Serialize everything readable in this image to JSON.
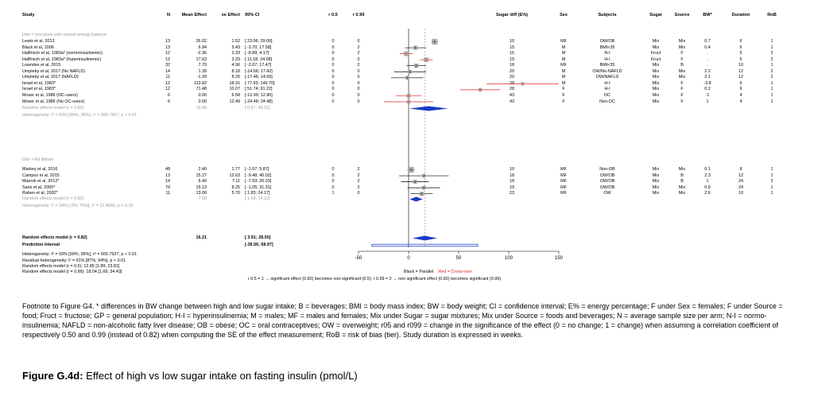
{
  "headers": {
    "study": "Study",
    "n": "N",
    "mean": "Mean Effect",
    "se": "se Effect",
    "ci": "95% CI",
    "r05": "r 0.5",
    "r099": "r 0.99",
    "sugar_diff": "Sugar diff (E%)",
    "sex": "Sex",
    "subjects": "Subjects",
    "sugar": "Sugar",
    "source": "Source",
    "bw": "BW*",
    "duration": "Duration",
    "rob": "RoB"
  },
  "groups": [
    {
      "label": "Diet = Isocaloric with neutral energy balance",
      "studies": [
        {
          "study": "Lewis et al, 2013",
          "n": "13",
          "mean": "26.02",
          "se": "1.52",
          "ci": "[ 23.06; 29.00]",
          "r05": "0",
          "r099": "0",
          "sugar_diff": "10",
          "sex": "MF",
          "subjects": "OW/OB",
          "sugar": "Mix",
          "source": "Mix",
          "bw": "0.7",
          "duration": "6",
          "rob": "1"
        },
        {
          "study": "Black et al, 2006",
          "n": "13",
          "mean": "6.94",
          "se": "5.43",
          "ci": "[ -3.70; 17.58]",
          "r05": "0",
          "r099": "2",
          "sugar_diff": "15",
          "sex": "M",
          "subjects": "BMI<35",
          "sugar": "Mix",
          "source": "Mix",
          "bw": "0.4",
          "duration": "6",
          "rob": "1"
        },
        {
          "study": "Hallfrisch et al, 1983a* (normoinsulinemic)",
          "n": "12",
          "mean": "-2.36",
          "se": "3.33",
          "ci": "[ -8.89; 4.17]",
          "r05": "0",
          "r099": "2",
          "sugar_diff": "15",
          "sex": "M",
          "subjects": "N-I",
          "sugar": "Fruct",
          "source": "F",
          "bw": ".",
          "duration": "5",
          "rob": "2"
        },
        {
          "study": "Hallfrisch et al, 1983a* (hyperinsulinemic)",
          "n": "12",
          "mean": "17.63",
          "se": "3.29",
          "ci": "[ 11.18; 24.08]",
          "r05": "0",
          "r099": "0",
          "sugar_diff": "15",
          "sex": "M",
          "subjects": "H-I",
          "sugar": "Fruct",
          "source": "F",
          "bw": ".",
          "duration": "5",
          "rob": "2"
        },
        {
          "study": "Lowndes et al, 2015",
          "n": "32",
          "mean": "7.70",
          "se": "4.96",
          "ci": "[ -2.07; 17.47]",
          "r05": "0",
          "r099": "2",
          "sugar_diff": "18",
          "sex": "MF",
          "subjects": "BMI<35",
          "sugar": "Mix",
          "source": "B",
          "bw": ".",
          "duration": "10",
          "rob": "1"
        },
        {
          "study": "Umpleby et al, 2017 (No NAFLD)",
          "n": "14",
          "mean": "1.39",
          "se": "8.18",
          "ci": "[-14.66; 17.42]",
          "r05": "0",
          "r099": "0",
          "sugar_diff": "20",
          "sex": "M",
          "subjects": "OW/No-NAFLD",
          "sugar": "Mix",
          "source": "Mix",
          "bw": "2.2",
          "duration": "12",
          "rob": "2"
        },
        {
          "study": "Umpleby et al, 2017 (NAFLD)",
          "n": "11",
          "mean": "-1.39",
          "se": "8.20",
          "ci": "[-17.46; 14.69]",
          "r05": "0",
          "r099": "0",
          "sugar_diff": "20",
          "sex": "M",
          "subjects": "OW/NAFLD",
          "sugar": "Mix",
          "source": "Mix",
          "bw": "2.1",
          "duration": "12",
          "rob": "2"
        },
        {
          "study": "Israel et al, 1983*",
          "n": "12",
          "mean": "113.82",
          "se": "18.31",
          "ci": "[ 77.93; 149.70]",
          "r05": "0",
          "r099": "0",
          "sugar_diff": "28",
          "sex": "M",
          "subjects": "H-I",
          "sugar": "Mix",
          "source": "F",
          "bw": "-3.8",
          "duration": "6",
          "rob": "1"
        },
        {
          "study": "Israel et al, 1983*",
          "n": "12",
          "mean": "71.48",
          "se": "10.07",
          "ci": "[ 51.74; 91.22]",
          "r05": "0",
          "r099": "0",
          "sugar_diff": "28",
          "sex": "F",
          "subjects": "H-I",
          "sugar": "Mix",
          "source": "F",
          "bw": "0.2",
          "duration": "6",
          "rob": "1"
        },
        {
          "study": "Moser et al, 1986 (OC-users)",
          "n": "6",
          "mean": "0.00",
          "se": "6.58",
          "ci": "[-12.90; 12.90]",
          "r05": "0",
          "r099": "0",
          "sugar_diff": "43",
          "sex": "F",
          "subjects": "OC",
          "sugar": "Mix",
          "source": "F",
          "bw": "-1",
          "duration": "4",
          "rob": "1"
        },
        {
          "study": "Moser et al, 1986 (No OC-users)",
          "n": "6",
          "mean": "0.00",
          "se": "12.49",
          "ci": "[-24.48; 24.48]",
          "r05": "0",
          "r099": "0",
          "sugar_diff": "43",
          "sex": "F",
          "subjects": "Non-OC",
          "sugar": "Mix",
          "source": "F",
          "bw": "1",
          "duration": "4",
          "rob": "1"
        }
      ],
      "summary": {
        "label": "Random effects model (r = 0.82)",
        "mean": "19.99",
        "ci": "[ 0.67; 39.31]"
      },
      "heterogeneity": "Heterogeneity: I² = 93% [90%; 96%], τ² = 998.7967, p < 0.01"
    },
    {
      "label": "Diet = Ad libitum",
      "studies": [
        {
          "study": "Markey et al, 2016",
          "n": "48",
          "mean": "2.40",
          "se": "1.77",
          "ci": "[ -1.07; 5.87]",
          "r05": "0",
          "r099": "2",
          "sugar_diff": "10",
          "sex": "MF",
          "subjects": "Non-OB",
          "sugar": "Mix",
          "source": "Mix",
          "bw": "0.1",
          "duration": "8",
          "rob": "1"
        },
        {
          "study": "Campos et al, 2015",
          "n": "13",
          "mean": "15.27",
          "se": "12.63",
          "ci": "[ -9.48; 40.02]",
          "r05": "0",
          "r099": "2",
          "sugar_diff": "18",
          "sex": "MF",
          "subjects": "OW/OB",
          "sugar": "Mix",
          "source": "B",
          "bw": "2.3",
          "duration": "12",
          "rob": "1"
        },
        {
          "study": "Maersk et al, 2012*",
          "n": "14",
          "mean": "6.40",
          "se": "7.11",
          "ci": "[ -7.53; 20.33]",
          "r05": "0",
          "r099": "2",
          "sugar_diff": "18",
          "sex": "MF",
          "subjects": "OW/OB",
          "sugar": "Mix",
          "source": "B",
          "bw": "1",
          "duration": "24",
          "rob": "2"
        },
        {
          "study": "Saris et al, 2000*",
          "n": "79",
          "mean": "15.13",
          "se": "8.25",
          "ci": "[ -1.05; 31.31]",
          "r05": "0",
          "r099": "2",
          "sugar_diff": "19",
          "sex": "MF",
          "subjects": "OW/OB",
          "sugar": "Mix",
          "source": "Mix",
          "bw": "0.9",
          "duration": "24",
          "rob": "1"
        },
        {
          "study": "Raben et al, 2002*",
          "n": "11",
          "mean": "13.00",
          "se": "5.70",
          "ci": "[ 1.83; 24.17]",
          "r05": "1",
          "r099": "0",
          "sugar_diff": "23",
          "sex": "MF",
          "subjects": "OW",
          "sugar": "Mix",
          "source": "Mix",
          "bw": "2.6",
          "duration": "10",
          "rob": "1"
        }
      ],
      "summary": {
        "label": "Random effects model (r = 0.82)",
        "mean": "7.58",
        "ci": "[ 1.04; 14.12]"
      },
      "heterogeneity": "Heterogeneity: I² = 34% [ 0%; 75%], τ² = 21.4566, p = 0.20"
    }
  ],
  "overall": {
    "label": "Random effects model (r = 0.82)",
    "mean": "16.21",
    "ci": "[ 3.91; 28.50]",
    "pi_label": "Prediction interval",
    "pi": "[-36.56; 68.97]"
  },
  "footer_stats": [
    "Heterogeneity: I² = 93% [90%; 95%], τ² = 565.7927, p < 0.01",
    "Residual heterogeneity: I² = 91% [87%; 94%], p < 0.01",
    "Random effects model (r = 0.5): 12.85 [1.89; 23.81]",
    "Random effects model (r = 0.99): 18.04 [1.66; 34.43]"
  ],
  "legend": {
    "black": "Black = Parallel",
    "red": "Red = Cross-over"
  },
  "legend_note": "r 0.5 = 1 → significant effect (0.82) becomes non-significant (0.5); r 0.99 = 2 → non significant effect (0.82) becomes significant (0.99)",
  "colors": {
    "parallel": "#000000",
    "crossover": "#e02020",
    "diamond": "#1a3cc8",
    "pi": "#1a3cc8",
    "box": "#a0a0a0",
    "group": "#9a9a9a"
  },
  "chart_data": {
    "type": "forest",
    "xlim": [
      -50,
      150
    ],
    "x_ticks": [
      -50,
      0,
      50,
      100,
      150
    ],
    "reference_line": 0,
    "studies": [
      {
        "name": "Lewis et al, 2013",
        "est": 26.02,
        "lo": 23.06,
        "hi": 29.0,
        "design": "parallel",
        "group": 0
      },
      {
        "name": "Black et al, 2006",
        "est": 6.94,
        "lo": -3.7,
        "hi": 17.58,
        "design": "parallel",
        "group": 0
      },
      {
        "name": "Hallfrisch et al, 1983a* (normoinsulinemic)",
        "est": -2.36,
        "lo": -8.89,
        "hi": 4.17,
        "design": "crossover",
        "group": 0
      },
      {
        "name": "Hallfrisch et al, 1983a* (hyperinsulinemic)",
        "est": 17.63,
        "lo": 11.18,
        "hi": 24.08,
        "design": "crossover",
        "group": 0
      },
      {
        "name": "Lowndes et al, 2015",
        "est": 7.7,
        "lo": -2.07,
        "hi": 17.47,
        "design": "parallel",
        "group": 0
      },
      {
        "name": "Umpleby et al, 2017 (No NAFLD)",
        "est": 1.39,
        "lo": -14.66,
        "hi": 17.42,
        "design": "parallel",
        "group": 0
      },
      {
        "name": "Umpleby et al, 2017 (NAFLD)",
        "est": -1.39,
        "lo": -17.46,
        "hi": 14.69,
        "design": "parallel",
        "group": 0
      },
      {
        "name": "Israel et al, 1983*",
        "est": 113.82,
        "lo": 77.93,
        "hi": 149.7,
        "design": "crossover",
        "group": 0
      },
      {
        "name": "Israel et al, 1983*",
        "est": 71.48,
        "lo": 51.74,
        "hi": 91.22,
        "design": "crossover",
        "group": 0
      },
      {
        "name": "Moser et al, 1986 (OC-users)",
        "est": 0.0,
        "lo": -12.9,
        "hi": 12.9,
        "design": "crossover",
        "group": 0
      },
      {
        "name": "Moser et al, 1986 (No OC-users)",
        "est": 0.0,
        "lo": -24.48,
        "hi": 24.48,
        "design": "crossover",
        "group": 0
      },
      {
        "name": "Markey et al, 2016",
        "est": 2.4,
        "lo": -1.07,
        "hi": 5.87,
        "design": "parallel",
        "group": 1
      },
      {
        "name": "Campos et al, 2015",
        "est": 15.27,
        "lo": -9.48,
        "hi": 40.02,
        "design": "parallel",
        "group": 1
      },
      {
        "name": "Maersk et al, 2012*",
        "est": 6.4,
        "lo": -7.53,
        "hi": 20.33,
        "design": "parallel",
        "group": 1
      },
      {
        "name": "Saris et al, 2000*",
        "est": 15.13,
        "lo": -1.05,
        "hi": 31.31,
        "design": "parallel",
        "group": 1
      },
      {
        "name": "Raben et al, 2002*",
        "est": 13.0,
        "lo": 1.83,
        "hi": 24.17,
        "design": "parallel",
        "group": 1
      }
    ],
    "subgroup_summaries": [
      {
        "group": 0,
        "est": 19.99,
        "lo": 0.67,
        "hi": 39.31
      },
      {
        "group": 1,
        "est": 7.58,
        "lo": 1.04,
        "hi": 14.12
      }
    ],
    "overall": {
      "est": 16.21,
      "lo": 3.91,
      "hi": 28.5,
      "pi_lo": -36.56,
      "pi_hi": 68.97
    }
  },
  "footnote": "Footnote to Figure G4. * differences in BW change between high and low sugar intake; B = beverages; BMI = body mass index; BW = body weight; CI = confidence interval; E% = energy percentage; F under Sex = females; F under Source = food; Fruct = fructose; GP = general population; H-I = hyperinsulinemia; M = males; MF = males and females; Mix under Sugar = sugar mixtures; Mix under Source = foods and beverages; N = average sample size per arm; N-I = normo-insulinemia; NAFLD = non-alcoholic fatty liver disease; OB = obese; OC = oral contraceptives; OW = overweight; r05 and r099 = change in the significance of the effect (0 = no change; 1 = change) when assuming a correlation coefficient of respectively 0.50 and 0.99 (instead of 0.82) when computing the SE of the effect measurement; RoB = risk of bias (tier). Study duration is expressed in weeks.",
  "caption": {
    "bold": "Figure G.4d:",
    "text": " Effect of high vs low sugar intake on fasting insulin (pmol/L)"
  }
}
